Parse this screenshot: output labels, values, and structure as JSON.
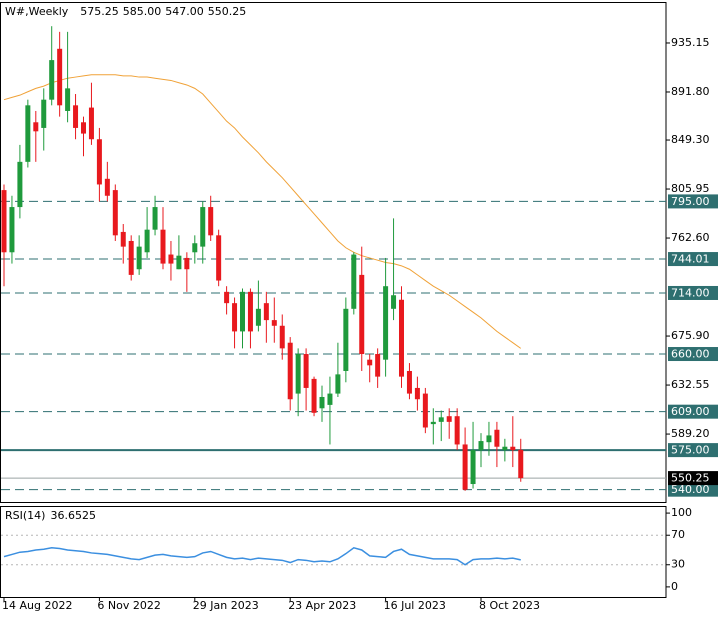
{
  "chart_data": [
    {
      "type": "candlestick",
      "title": "W#,Weekly",
      "ohlc_labels": [
        "575.25",
        "585.00",
        "547.00",
        "550.25"
      ],
      "categories": [
        "14 Aug 2022",
        null,
        null,
        null,
        null,
        null,
        null,
        null,
        null,
        null,
        null,
        null,
        "6 Nov 2022",
        null,
        null,
        null,
        null,
        null,
        null,
        null,
        null,
        null,
        null,
        null,
        "29 Jan 2023",
        null,
        null,
        null,
        null,
        null,
        null,
        null,
        null,
        null,
        null,
        null,
        "23 Apr 2023",
        null,
        null,
        null,
        null,
        null,
        null,
        null,
        null,
        null,
        null,
        null,
        "16 Jul 2023",
        null,
        null,
        null,
        null,
        null,
        null,
        null,
        null,
        null,
        null,
        null,
        "8 Oct 2023",
        null,
        null,
        null,
        null,
        null
      ],
      "open": [
        805,
        750,
        790,
        830,
        865,
        860,
        885,
        930,
        875,
        880,
        865,
        878,
        850,
        815,
        805,
        768,
        760,
        735,
        750,
        770,
        770,
        748,
        735,
        745,
        750,
        755,
        790,
        765,
        715,
        705,
        680,
        715,
        685,
        705,
        690,
        685,
        670,
        625,
        660,
        638,
        612,
        615,
        625,
        645,
        700,
        730,
        655,
        660,
        655,
        700,
        708,
        645,
        630,
        625,
        598,
        600,
        605,
        605,
        580,
        545,
        575,
        582,
        593,
        575,
        578,
        575.25
      ],
      "high": [
        810,
        800,
        845,
        885,
        875,
        895,
        950,
        945,
        945,
        890,
        870,
        900,
        860,
        830,
        810,
        775,
        765,
        765,
        790,
        800,
        790,
        760,
        765,
        750,
        765,
        795,
        800,
        770,
        720,
        710,
        718,
        718,
        725,
        715,
        710,
        695,
        675,
        665,
        665,
        640,
        632,
        640,
        670,
        710,
        750,
        755,
        660,
        665,
        745,
        780,
        720,
        652,
        640,
        630,
        612,
        610,
        612,
        612,
        595,
        600,
        590,
        600,
        600,
        585,
        605,
        585
      ],
      "low": [
        720,
        740,
        780,
        825,
        830,
        840,
        880,
        870,
        865,
        850,
        835,
        845,
        795,
        795,
        760,
        740,
        725,
        730,
        745,
        765,
        735,
        725,
        735,
        715,
        740,
        740,
        760,
        720,
        695,
        665,
        665,
        665,
        680,
        670,
        670,
        655,
        610,
        605,
        610,
        605,
        600,
        580,
        622,
        635,
        695,
        645,
        635,
        630,
        640,
        690,
        630,
        620,
        610,
        590,
        580,
        583,
        585,
        575,
        539,
        541,
        560,
        570,
        560,
        565,
        560,
        547
      ],
      "close": [
        750,
        790,
        830,
        880,
        857,
        885,
        920,
        880,
        895,
        860,
        855,
        850,
        810,
        800,
        765,
        755,
        730,
        755,
        770,
        790,
        740,
        740,
        747,
        735,
        758,
        790,
        765,
        725,
        705,
        680,
        715,
        680,
        700,
        690,
        685,
        665,
        620,
        660,
        630,
        608,
        622,
        625,
        642,
        700,
        748,
        660,
        650,
        640,
        720,
        712,
        640,
        625,
        620,
        595,
        600,
        604,
        600,
        580,
        540,
        575,
        583,
        588,
        578,
        578,
        575,
        550.25
      ],
      "up_color": "#1f9a3c",
      "down_color": "#e8191e",
      "series": [
        {
          "color": "#f0a238",
          "values": [
            885,
            887,
            889,
            892,
            895,
            897,
            900,
            902,
            904,
            905,
            906,
            907,
            907,
            907,
            907,
            906,
            906,
            905,
            905,
            904,
            903,
            902,
            900,
            898,
            895,
            890,
            882,
            874,
            866,
            860,
            852,
            845,
            838,
            830,
            823,
            816,
            808,
            800,
            792,
            784,
            776,
            768,
            760,
            754,
            750,
            747,
            745,
            743,
            741,
            740,
            738,
            735,
            730,
            725,
            720,
            716,
            712,
            707,
            702,
            697,
            692,
            686,
            680,
            675,
            670,
            665
          ]
        }
      ],
      "ylim": [
        529.1,
        971.4
      ],
      "yticks": [
        935.15,
        {
          "value": 891.8,
          "label": "891.80"
        },
        {
          "value": 849.3,
          "label": "849.30"
        },
        805.95,
        {
          "value": 762.6,
          "label": "762.60"
        },
        {
          "value": 675.9,
          "label": "675.90"
        },
        632.55,
        {
          "value": 589.2,
          "label": "589.20"
        }
      ],
      "levels": [
        {
          "value": 795,
          "label": "795.00",
          "style": "dashed"
        },
        {
          "value": 744.01,
          "label": "744.01",
          "style": "dashed"
        },
        {
          "value": 714,
          "label": "714.00",
          "style": "dashed"
        },
        {
          "value": 660,
          "label": "660.00",
          "style": "dashed"
        },
        {
          "value": 609,
          "label": "609.00",
          "style": "dashed"
        },
        {
          "value": 575,
          "label": "575.00",
          "style": "solid"
        },
        {
          "value": 540,
          "label": "540.00",
          "style": "dashed"
        }
      ],
      "level_color": "#2e6f70",
      "current_price": {
        "value": 550.25,
        "label": "550.25"
      }
    },
    {
      "type": "line",
      "name": "RSI(14)",
      "color": "#3b8fe0",
      "values": [
        41,
        44,
        47,
        48,
        50,
        51,
        53,
        52,
        50,
        49,
        48,
        46,
        45,
        44,
        42,
        40,
        38,
        37,
        40,
        43,
        44,
        42,
        41,
        40,
        41,
        46,
        48,
        44,
        40,
        38,
        39,
        37,
        39,
        38,
        37,
        36,
        33,
        37,
        36,
        34,
        35,
        34,
        38,
        45,
        53,
        50,
        42,
        41,
        40,
        48,
        51,
        44,
        42,
        40,
        38,
        38,
        38,
        37,
        30,
        37,
        38,
        38,
        39,
        38,
        39,
        36.6525
      ],
      "ylim": [
        -13.7,
        109.6
      ],
      "yticks": [
        100,
        70,
        30,
        0
      ],
      "levels": [
        70,
        30
      ]
    }
  ]
}
